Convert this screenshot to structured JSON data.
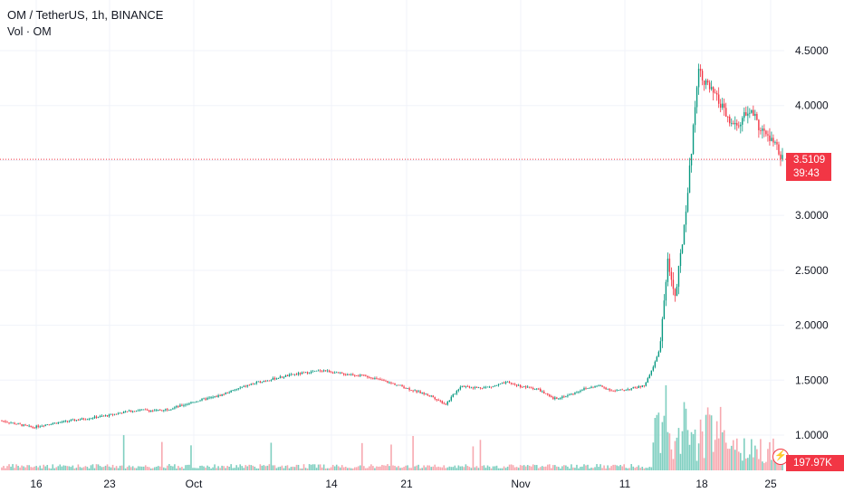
{
  "legend": {
    "title": "OM / TetherUS, 1h, BINANCE",
    "volume_label": "Vol · OM"
  },
  "last_price": {
    "value": "3.5109",
    "countdown": "39:43",
    "color": "#f23645"
  },
  "volume_last": "197.97K",
  "colors": {
    "up": "#089981",
    "down": "#f23645",
    "up_vol": "#7fcfc0",
    "down_vol": "#f7a9b0",
    "grid": "#f0f3fa",
    "axis_text": "#131722"
  },
  "chart_data": {
    "type": "candlestick",
    "symbol": "OM / TetherUS",
    "interval": "1h",
    "exchange": "BINANCE",
    "y_axis": {
      "ticks": [
        "1.0000",
        "1.5000",
        "2.0000",
        "2.5000",
        "3.0000",
        "3.5000",
        "4.0000",
        "4.5000"
      ],
      "range": [
        0.7,
        4.85
      ]
    },
    "x_axis": {
      "ticks": [
        "16",
        "23",
        "Oct",
        "14",
        "21",
        "Nov",
        "11",
        "18",
        "25"
      ]
    },
    "price_path": [
      [
        0,
        1.13
      ],
      [
        2,
        1.1
      ],
      [
        4,
        1.07
      ],
      [
        6,
        1.1
      ],
      [
        8,
        1.12
      ],
      [
        10,
        1.14
      ],
      [
        12,
        1.16
      ],
      [
        14,
        1.18
      ],
      [
        16,
        1.21
      ],
      [
        18,
        1.23
      ],
      [
        20,
        1.22
      ],
      [
        22,
        1.24
      ],
      [
        24,
        1.28
      ],
      [
        26,
        1.32
      ],
      [
        28,
        1.35
      ],
      [
        30,
        1.4
      ],
      [
        32,
        1.45
      ],
      [
        34,
        1.49
      ],
      [
        36,
        1.52
      ],
      [
        38,
        1.55
      ],
      [
        40,
        1.57
      ],
      [
        42,
        1.59
      ],
      [
        44,
        1.56
      ],
      [
        46,
        1.55
      ],
      [
        48,
        1.53
      ],
      [
        50,
        1.49
      ],
      [
        52,
        1.45
      ],
      [
        54,
        1.4
      ],
      [
        56,
        1.36
      ],
      [
        58,
        1.28
      ],
      [
        60,
        1.45
      ],
      [
        62,
        1.43
      ],
      [
        64,
        1.44
      ],
      [
        66,
        1.48
      ],
      [
        68,
        1.44
      ],
      [
        70,
        1.42
      ],
      [
        72,
        1.33
      ],
      [
        74,
        1.36
      ],
      [
        76,
        1.42
      ],
      [
        78,
        1.45
      ],
      [
        80,
        1.4
      ],
      [
        82,
        1.42
      ],
      [
        84,
        1.45
      ],
      [
        85,
        1.6
      ],
      [
        86,
        1.8
      ],
      [
        87,
        2.6
      ],
      [
        88,
        2.25
      ],
      [
        89,
        2.8
      ],
      [
        90,
        3.5
      ],
      [
        91,
        4.35
      ],
      [
        92,
        4.2
      ],
      [
        93,
        4.1
      ],
      [
        94,
        4.0
      ],
      [
        95,
        3.85
      ],
      [
        96,
        3.8
      ],
      [
        97,
        3.9
      ],
      [
        98,
        3.95
      ],
      [
        99,
        3.8
      ],
      [
        100,
        3.72
      ],
      [
        101,
        3.65
      ],
      [
        102,
        3.51
      ]
    ],
    "x_domain": [
      0,
      102
    ]
  }
}
